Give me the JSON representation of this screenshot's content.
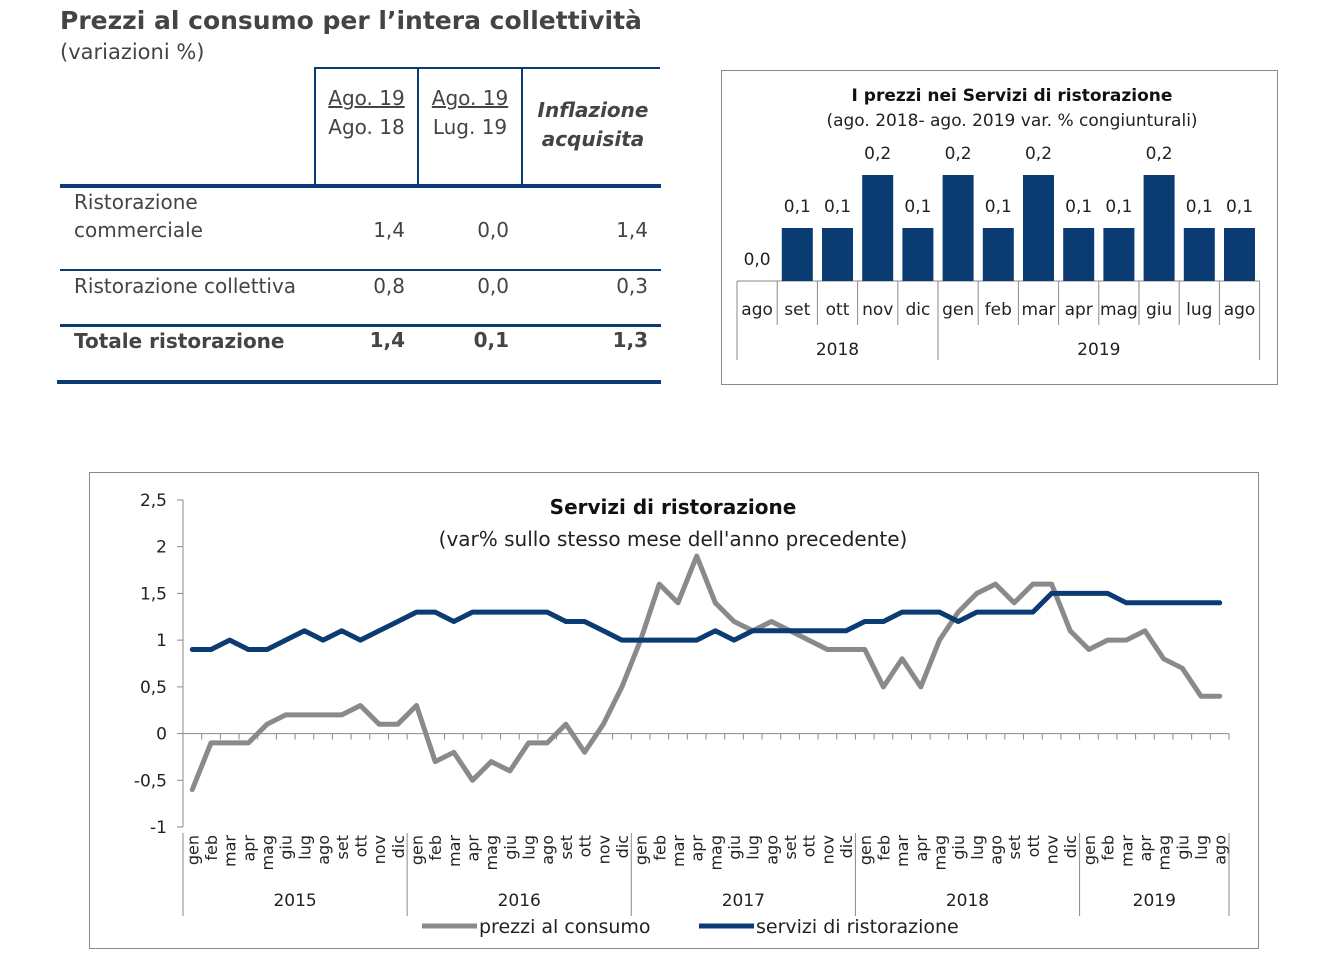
{
  "table": {
    "title": "Prezzi al consumo per l’intera collettività",
    "subtitle": "(variazioni %)",
    "headers": [
      {
        "top": "Ago. 19",
        "bottom": "Ago. 18"
      },
      {
        "top": "Ago. 19",
        "bottom": "Lug. 19"
      },
      {
        "top": "Inflazione",
        "bottom": "acquisita"
      }
    ],
    "rows": [
      {
        "label_lines": [
          "Ristorazione",
          "commerciale"
        ],
        "values": [
          "1,4",
          "0,0",
          "1,4"
        ]
      },
      {
        "label_lines": [
          "Ristorazione collettiva"
        ],
        "values": [
          "0,8",
          "0,0",
          "0,3"
        ]
      },
      {
        "label_lines": [
          "Totale ristorazione"
        ],
        "values": [
          "1,4",
          "0,1",
          "1,3"
        ],
        "bold": true
      }
    ]
  },
  "chart_data": [
    {
      "type": "bar",
      "title": "I prezzi nei Servizi di ristorazione",
      "subtitle": "(ago. 2018- ago. 2019 var. % congiunturali)",
      "categories": [
        "ago",
        "set",
        "ott",
        "nov",
        "dic",
        "gen",
        "feb",
        "mar",
        "apr",
        "mag",
        "giu",
        "lug",
        "ago"
      ],
      "years": [
        {
          "label": "2018",
          "count": 5
        },
        {
          "label": "2019",
          "count": 8
        }
      ],
      "values": [
        0.0,
        0.1,
        0.1,
        0.2,
        0.1,
        0.2,
        0.1,
        0.2,
        0.1,
        0.1,
        0.2,
        0.1,
        0.1
      ],
      "value_labels": [
        "0,0",
        "0,1",
        "0,1",
        "0,2",
        "0,1",
        "0,2",
        "0,1",
        "0,2",
        "0,1",
        "0,1",
        "0,2",
        "0,1",
        "0,1"
      ],
      "bar_color": "#0b3b73",
      "ylim": [
        0,
        0.2
      ]
    },
    {
      "type": "line",
      "title": "Servizi di ristorazione",
      "subtitle": "(var% sullo stesso mese dell'anno precedente)",
      "months": [
        "gen",
        "feb",
        "mar",
        "apr",
        "mag",
        "giu",
        "lug",
        "ago",
        "set",
        "ott",
        "nov",
        "dic"
      ],
      "years": [
        "2015",
        "2016",
        "2017",
        "2018",
        "2019"
      ],
      "year_month_counts": [
        12,
        12,
        12,
        12,
        8
      ],
      "y_ticks": [
        2.5,
        2,
        1.5,
        1,
        0.5,
        0,
        -0.5,
        -1
      ],
      "y_tick_labels": [
        "2,5",
        "2",
        "1,5",
        "1",
        "0,5",
        "0",
        "-0,5",
        "-1"
      ],
      "ylim": [
        -1,
        2.5
      ],
      "legend_position": "bottom",
      "series": [
        {
          "name": "prezzi al consumo",
          "color": "#8a8a8a",
          "values": [
            -0.6,
            -0.1,
            -0.1,
            -0.1,
            0.1,
            0.2,
            0.2,
            0.2,
            0.2,
            0.3,
            0.1,
            0.1,
            0.3,
            -0.3,
            -0.2,
            -0.5,
            -0.3,
            -0.4,
            -0.1,
            -0.1,
            0.1,
            -0.2,
            0.1,
            0.5,
            1.0,
            1.6,
            1.4,
            1.9,
            1.4,
            1.2,
            1.1,
            1.2,
            1.1,
            1.0,
            0.9,
            0.9,
            0.9,
            0.5,
            0.8,
            0.5,
            1.0,
            1.3,
            1.5,
            1.6,
            1.4,
            1.6,
            1.6,
            1.1,
            0.9,
            1.0,
            1.0,
            1.1,
            0.8,
            0.7,
            0.4,
            0.4
          ]
        },
        {
          "name": "servizi di ristorazione",
          "color": "#0b3b73",
          "values": [
            0.9,
            0.9,
            1.0,
            0.9,
            0.9,
            1.0,
            1.1,
            1.0,
            1.1,
            1.0,
            1.1,
            1.2,
            1.3,
            1.3,
            1.2,
            1.3,
            1.3,
            1.3,
            1.3,
            1.3,
            1.2,
            1.2,
            1.1,
            1.0,
            1.0,
            1.0,
            1.0,
            1.0,
            1.1,
            1.0,
            1.1,
            1.1,
            1.1,
            1.1,
            1.1,
            1.1,
            1.2,
            1.2,
            1.3,
            1.3,
            1.3,
            1.2,
            1.3,
            1.3,
            1.3,
            1.3,
            1.5,
            1.5,
            1.5,
            1.5,
            1.4,
            1.4,
            1.4,
            1.4,
            1.4,
            1.4
          ]
        }
      ]
    }
  ]
}
